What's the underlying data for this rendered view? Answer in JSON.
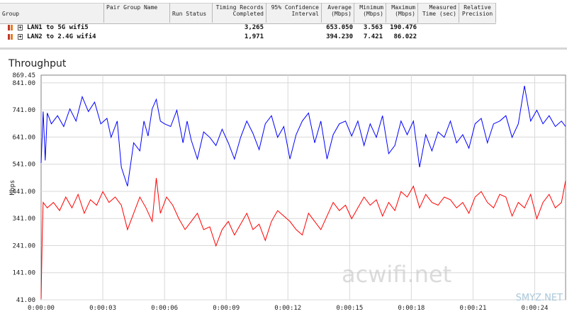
{
  "table": {
    "headers": [
      {
        "label": "Group"
      },
      {
        "label": "Pair Group Name"
      },
      {
        "label": "Run Status"
      },
      {
        "label": "Timing Records Completed"
      },
      {
        "label": "95% Confidence Interval"
      },
      {
        "label": "Average (Mbps)"
      },
      {
        "label": "Minimum (Mbps)"
      },
      {
        "label": "Maximum (Mbps)"
      },
      {
        "label": "Measured Time (sec)"
      },
      {
        "label": "Relative Precision"
      }
    ],
    "rows": [
      {
        "name": "LAN1 to 5G wifi5",
        "records": "3,265",
        "average": "653.050",
        "minimum": "3.563",
        "maximum": "190.476"
      },
      {
        "name": "LAN2 to 2.4G wifi4",
        "records": "1,971",
        "average": "394.230",
        "minimum": "7.421",
        "maximum": "86.022"
      }
    ]
  },
  "chart": {
    "title": "Throughput",
    "ylabel": "Mbps",
    "watermark": "acwifi.net",
    "corner_watermark": "SMYZ.NET"
  },
  "chart_data": {
    "type": "line",
    "title": "Throughput",
    "ylabel": "Mbps",
    "ylim": [
      41.0,
      869.45
    ],
    "yticks": [
      "869.45",
      "841.00",
      "741.00",
      "641.00",
      "541.00",
      "441.00",
      "341.00",
      "241.00",
      "141.00",
      "41.00"
    ],
    "xticks": [
      "0:00:00",
      "0:00:03",
      "0:00:06",
      "0:00:09",
      "0:00:12",
      "0:00:15",
      "0:00:18",
      "0:00:21",
      "0:00:24"
    ],
    "xlim": [
      0,
      25.5
    ],
    "grid": true,
    "series": [
      {
        "color": "#0000ff",
        "x": [
          0.0,
          0.1,
          0.2,
          0.3,
          0.5,
          0.8,
          1.1,
          1.4,
          1.7,
          2.0,
          2.3,
          2.6,
          2.9,
          3.2,
          3.4,
          3.7,
          3.9,
          4.2,
          4.5,
          4.8,
          5.0,
          5.2,
          5.4,
          5.6,
          5.8,
          6.0,
          6.3,
          6.6,
          6.9,
          7.1,
          7.3,
          7.6,
          7.9,
          8.2,
          8.5,
          8.8,
          9.1,
          9.4,
          9.7,
          10.0,
          10.3,
          10.6,
          10.9,
          11.2,
          11.5,
          11.8,
          12.1,
          12.4,
          12.7,
          13.0,
          13.3,
          13.6,
          13.9,
          14.2,
          14.5,
          14.8,
          15.1,
          15.4,
          15.7,
          16.0,
          16.3,
          16.6,
          16.9,
          17.2,
          17.5,
          17.8,
          18.1,
          18.4,
          18.7,
          19.0,
          19.3,
          19.6,
          19.9,
          20.2,
          20.5,
          20.8,
          21.1,
          21.4,
          21.7,
          22.0,
          22.3,
          22.6,
          22.9,
          23.2,
          23.5,
          23.8,
          24.1,
          24.4,
          24.7,
          25.0,
          25.3,
          25.5
        ],
        "y": [
          545,
          735,
          555,
          730,
          690,
          720,
          680,
          745,
          700,
          790,
          735,
          770,
          690,
          710,
          640,
          700,
          530,
          460,
          620,
          590,
          700,
          645,
          745,
          780,
          700,
          690,
          680,
          740,
          620,
          700,
          630,
          560,
          660,
          640,
          610,
          670,
          620,
          560,
          640,
          700,
          655,
          595,
          690,
          720,
          640,
          680,
          560,
          650,
          700,
          730,
          620,
          700,
          560,
          650,
          690,
          700,
          645,
          700,
          610,
          690,
          640,
          720,
          580,
          610,
          700,
          650,
          700,
          530,
          650,
          590,
          660,
          640,
          700,
          620,
          650,
          600,
          690,
          710,
          620,
          690,
          700,
          720,
          640,
          690,
          830,
          700,
          740,
          690,
          720,
          680,
          700,
          680
        ]
      },
      {
        "color": "#ff0000",
        "x": [
          0.0,
          0.05,
          0.1,
          0.3,
          0.6,
          0.9,
          1.2,
          1.5,
          1.8,
          2.1,
          2.4,
          2.7,
          3.0,
          3.3,
          3.6,
          3.9,
          4.2,
          4.5,
          4.8,
          5.1,
          5.4,
          5.6,
          5.8,
          6.1,
          6.4,
          6.7,
          7.0,
          7.3,
          7.6,
          7.9,
          8.2,
          8.5,
          8.8,
          9.1,
          9.4,
          9.7,
          10.0,
          10.3,
          10.6,
          10.9,
          11.2,
          11.5,
          11.8,
          12.1,
          12.4,
          12.7,
          13.0,
          13.3,
          13.6,
          13.9,
          14.2,
          14.5,
          14.8,
          15.1,
          15.4,
          15.7,
          16.0,
          16.3,
          16.6,
          16.9,
          17.2,
          17.5,
          17.8,
          18.1,
          18.4,
          18.7,
          19.0,
          19.3,
          19.6,
          19.9,
          20.2,
          20.5,
          20.8,
          21.1,
          21.4,
          21.7,
          22.0,
          22.3,
          22.6,
          22.9,
          23.2,
          23.5,
          23.8,
          24.1,
          24.4,
          24.7,
          25.0,
          25.3,
          25.5
        ],
        "y": [
          45,
          270,
          400,
          380,
          400,
          370,
          420,
          380,
          430,
          360,
          410,
          390,
          440,
          400,
          420,
          390,
          300,
          360,
          420,
          380,
          330,
          490,
          360,
          420,
          390,
          340,
          300,
          330,
          360,
          300,
          310,
          240,
          300,
          330,
          280,
          320,
          360,
          300,
          320,
          260,
          330,
          370,
          350,
          330,
          300,
          280,
          360,
          330,
          300,
          350,
          400,
          370,
          390,
          340,
          380,
          420,
          390,
          410,
          350,
          400,
          370,
          440,
          420,
          460,
          380,
          430,
          400,
          390,
          420,
          410,
          380,
          400,
          360,
          420,
          440,
          400,
          380,
          430,
          420,
          350,
          400,
          380,
          430,
          340,
          400,
          430,
          380,
          400,
          480
        ]
      }
    ]
  }
}
